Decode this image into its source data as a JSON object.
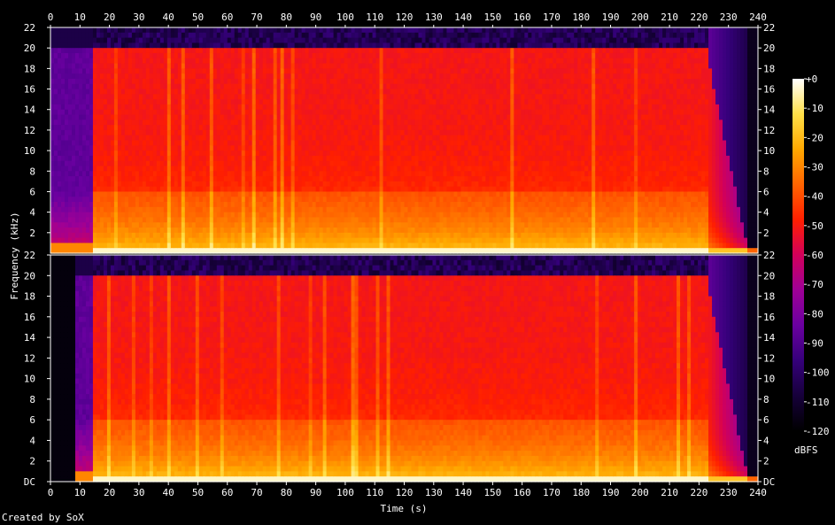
{
  "chart_data": {
    "type": "heatmap",
    "kind": "spectrogram",
    "channels": 2,
    "xlabel": "Time (s)",
    "ylabel": "Frequency (kHz)",
    "xlim": [
      0,
      240
    ],
    "ylim_khz": [
      0,
      22
    ],
    "x_ticks": [
      0,
      10,
      20,
      30,
      40,
      50,
      60,
      70,
      80,
      90,
      100,
      110,
      120,
      130,
      140,
      150,
      160,
      170,
      180,
      190,
      200,
      210,
      220,
      230,
      240
    ],
    "y_ticks": [
      "DC",
      "2",
      "4",
      "6",
      "8",
      "10",
      "12",
      "14",
      "16",
      "18",
      "20",
      "22"
    ],
    "colorbar": {
      "label": "dBFS",
      "range": [
        -120,
        0
      ],
      "ticks": [
        "+0",
        "-10",
        "-20",
        "-30",
        "-40",
        "-50",
        "-60",
        "-70",
        "-80",
        "-90",
        "-100",
        "-110",
        "-120"
      ],
      "colormap": [
        "#000000",
        "#2a0052",
        "#54009a",
        "#9a0096",
        "#d0005a",
        "#ff2000",
        "#ff6a00",
        "#ffaa00",
        "#ffe040",
        "#ffffa0",
        "#ffffff"
      ]
    },
    "features": {
      "music_start_s": 14,
      "music_end_s": 223,
      "fade_end_s": 236,
      "lowpass_cutoff_khz": 20,
      "intro_ch1_start_s": 0,
      "intro_ch2_start_s": 8
    }
  },
  "footer": {
    "credit": "Created by SoX"
  }
}
